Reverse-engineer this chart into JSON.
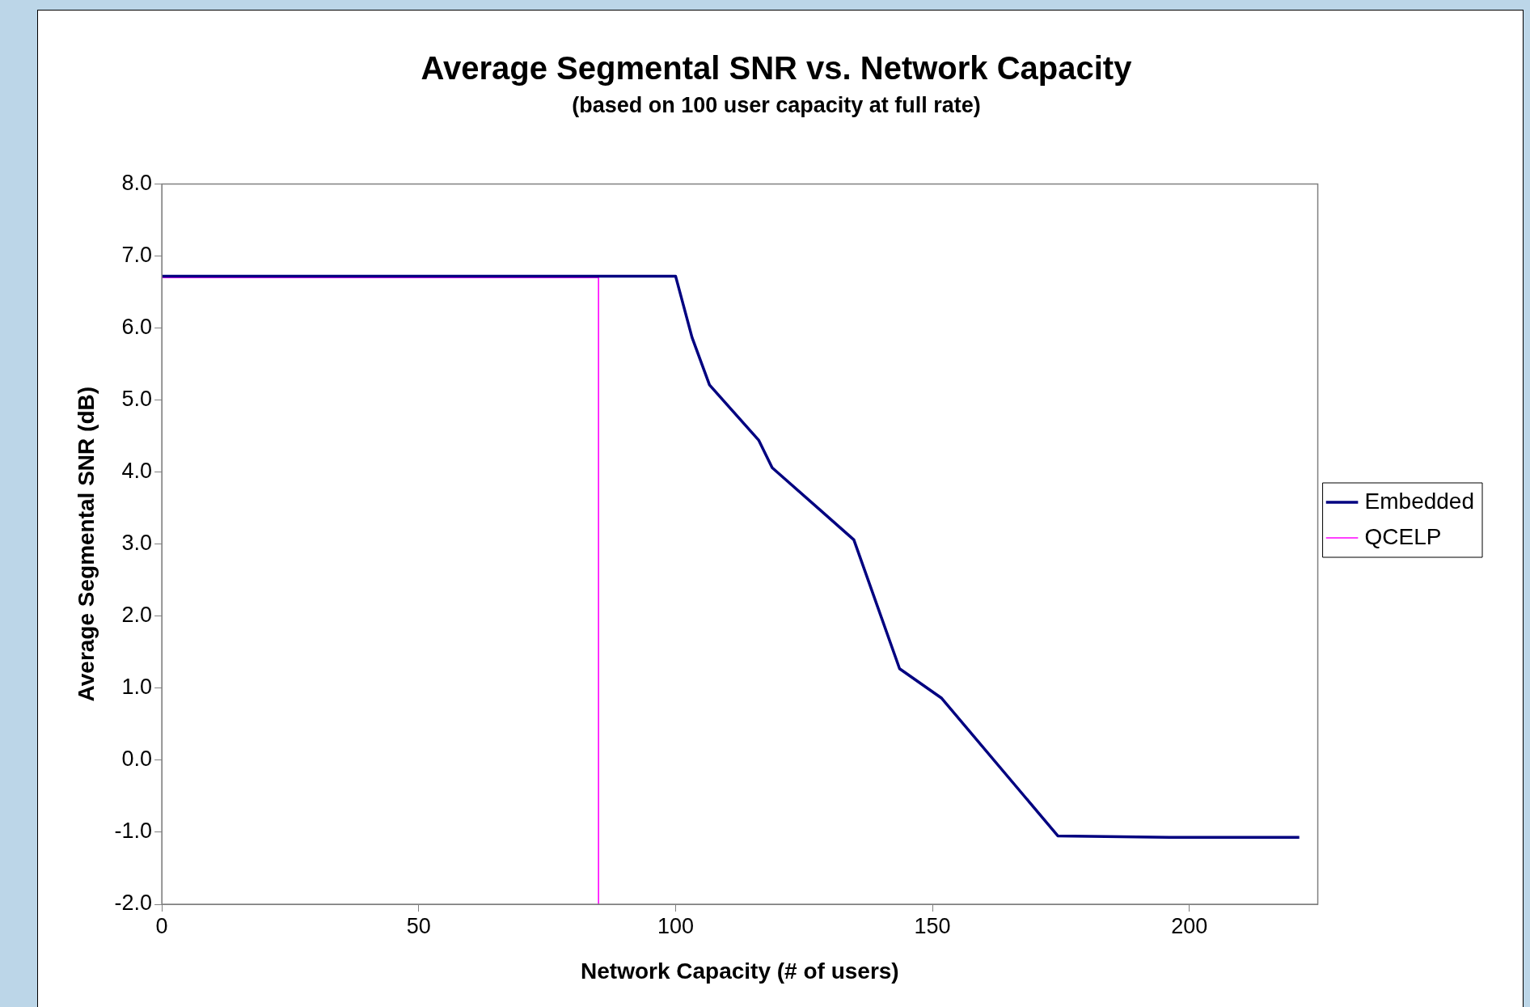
{
  "chart_data": {
    "type": "line",
    "title": "Average Segmental SNR vs. Network Capacity",
    "subtitle": "(based on 100 user capacity at full rate)",
    "xlabel": "Network Capacity (# of users)",
    "ylabel": "Average Segmental SNR (dB)",
    "series": [
      {
        "name": "Embedded",
        "color": "#000080",
        "x": [
          0,
          100,
          103.2,
          106.6,
          116.2,
          118.8,
          134.7,
          143.6,
          151.8,
          174.4,
          196.1,
          221.4
        ],
        "values": [
          6.72,
          6.72,
          5.87,
          5.21,
          4.44,
          4.06,
          3.06,
          1.27,
          0.86,
          -1.05,
          -1.07,
          -1.07
        ]
      },
      {
        "name": "QCELP",
        "color": "#ff00ff",
        "x": [
          0,
          85,
          85
        ],
        "values": [
          6.7,
          6.7,
          -2.0
        ]
      }
    ],
    "xlim": [
      0,
      225
    ],
    "xticks": [
      0,
      50,
      100,
      150,
      200
    ],
    "ylim": [
      -2,
      8
    ],
    "yticks": [
      {
        "value": -2,
        "label": "-2.0"
      },
      {
        "value": -1,
        "label": "-1.0"
      },
      {
        "value": 0,
        "label": "0.0"
      },
      {
        "value": 1,
        "label": "1.0"
      },
      {
        "value": 2,
        "label": "2.0"
      },
      {
        "value": 3,
        "label": "3.0"
      },
      {
        "value": 4,
        "label": "4.0"
      },
      {
        "value": 5,
        "label": "5.0"
      },
      {
        "value": 6,
        "label": "6.0"
      },
      {
        "value": 7,
        "label": "7.0"
      },
      {
        "value": 8,
        "label": "8.0"
      }
    ],
    "grid": false,
    "legend": "right",
    "marker": "none"
  }
}
